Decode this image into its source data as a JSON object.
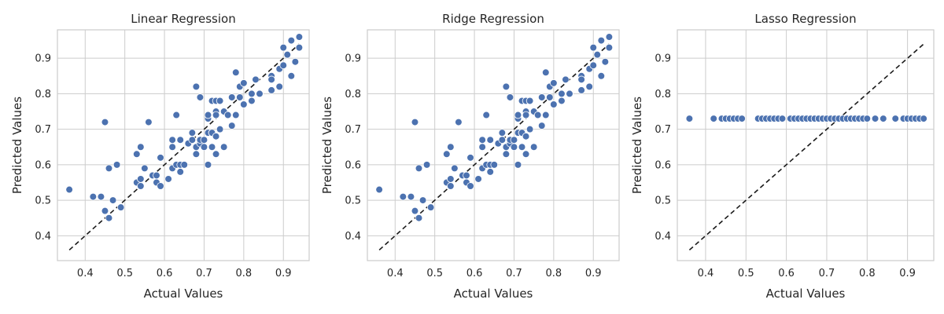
{
  "chart_data": [
    {
      "type": "scatter",
      "title": "Linear Regression",
      "xlabel": "Actual Values",
      "ylabel": "Predicted Values",
      "xlim": [
        0.33,
        0.965
      ],
      "ylim": [
        0.33,
        0.98
      ],
      "xticks": [
        0.4,
        0.5,
        0.6,
        0.7,
        0.8,
        0.9
      ],
      "yticks": [
        0.4,
        0.5,
        0.6,
        0.7,
        0.8,
        0.9
      ],
      "grid": true,
      "reference_line": {
        "style": "dashed",
        "color": "#1a1a1a",
        "from": [
          0.36,
          0.36
        ],
        "to": [
          0.94,
          0.94
        ]
      },
      "color": "#4c72b0",
      "points": [
        [
          0.36,
          0.53
        ],
        [
          0.42,
          0.51
        ],
        [
          0.44,
          0.51
        ],
        [
          0.45,
          0.72
        ],
        [
          0.45,
          0.47
        ],
        [
          0.46,
          0.59
        ],
        [
          0.46,
          0.45
        ],
        [
          0.47,
          0.5
        ],
        [
          0.48,
          0.6
        ],
        [
          0.49,
          0.48
        ],
        [
          0.53,
          0.55
        ],
        [
          0.53,
          0.63
        ],
        [
          0.54,
          0.65
        ],
        [
          0.54,
          0.54
        ],
        [
          0.54,
          0.56
        ],
        [
          0.55,
          0.59
        ],
        [
          0.56,
          0.72
        ],
        [
          0.57,
          0.57
        ],
        [
          0.58,
          0.57
        ],
        [
          0.58,
          0.55
        ],
        [
          0.59,
          0.54
        ],
        [
          0.59,
          0.62
        ],
        [
          0.61,
          0.56
        ],
        [
          0.62,
          0.65
        ],
        [
          0.62,
          0.67
        ],
        [
          0.62,
          0.59
        ],
        [
          0.63,
          0.6
        ],
        [
          0.63,
          0.74
        ],
        [
          0.64,
          0.67
        ],
        [
          0.64,
          0.58
        ],
        [
          0.64,
          0.6
        ],
        [
          0.65,
          0.6
        ],
        [
          0.66,
          0.66
        ],
        [
          0.67,
          0.69
        ],
        [
          0.67,
          0.67
        ],
        [
          0.68,
          0.65
        ],
        [
          0.68,
          0.63
        ],
        [
          0.68,
          0.82
        ],
        [
          0.69,
          0.79
        ],
        [
          0.69,
          0.66
        ],
        [
          0.69,
          0.67
        ],
        [
          0.7,
          0.65
        ],
        [
          0.7,
          0.67
        ],
        [
          0.71,
          0.73
        ],
        [
          0.71,
          0.74
        ],
        [
          0.71,
          0.69
        ],
        [
          0.71,
          0.6
        ],
        [
          0.72,
          0.78
        ],
        [
          0.72,
          0.69
        ],
        [
          0.72,
          0.65
        ],
        [
          0.72,
          0.69
        ],
        [
          0.73,
          0.78
        ],
        [
          0.73,
          0.75
        ],
        [
          0.73,
          0.74
        ],
        [
          0.73,
          0.68
        ],
        [
          0.73,
          0.63
        ],
        [
          0.74,
          0.78
        ],
        [
          0.74,
          0.7
        ],
        [
          0.75,
          0.75
        ],
        [
          0.75,
          0.65
        ],
        [
          0.76,
          0.74
        ],
        [
          0.77,
          0.79
        ],
        [
          0.77,
          0.71
        ],
        [
          0.78,
          0.86
        ],
        [
          0.78,
          0.74
        ],
        [
          0.79,
          0.82
        ],
        [
          0.79,
          0.79
        ],
        [
          0.8,
          0.83
        ],
        [
          0.8,
          0.77
        ],
        [
          0.82,
          0.8
        ],
        [
          0.82,
          0.78
        ],
        [
          0.83,
          0.84
        ],
        [
          0.84,
          0.8
        ],
        [
          0.87,
          0.85
        ],
        [
          0.87,
          0.84
        ],
        [
          0.87,
          0.81
        ],
        [
          0.89,
          0.87
        ],
        [
          0.89,
          0.82
        ],
        [
          0.9,
          0.88
        ],
        [
          0.9,
          0.93
        ],
        [
          0.91,
          0.91
        ],
        [
          0.92,
          0.85
        ],
        [
          0.92,
          0.95
        ],
        [
          0.93,
          0.89
        ],
        [
          0.94,
          0.96
        ],
        [
          0.94,
          0.93
        ]
      ]
    },
    {
      "type": "scatter",
      "title": "Ridge Regression",
      "xlabel": "Actual Values",
      "ylabel": "Predicted Values",
      "xlim": [
        0.33,
        0.965
      ],
      "ylim": [
        0.33,
        0.98
      ],
      "xticks": [
        0.4,
        0.5,
        0.6,
        0.7,
        0.8,
        0.9
      ],
      "yticks": [
        0.4,
        0.5,
        0.6,
        0.7,
        0.8,
        0.9
      ],
      "grid": true,
      "reference_line": {
        "style": "dashed",
        "color": "#1a1a1a",
        "from": [
          0.36,
          0.36
        ],
        "to": [
          0.94,
          0.94
        ]
      },
      "color": "#4c72b0",
      "points": [
        [
          0.36,
          0.53
        ],
        [
          0.42,
          0.51
        ],
        [
          0.44,
          0.51
        ],
        [
          0.45,
          0.72
        ],
        [
          0.45,
          0.47
        ],
        [
          0.46,
          0.59
        ],
        [
          0.46,
          0.45
        ],
        [
          0.47,
          0.5
        ],
        [
          0.48,
          0.6
        ],
        [
          0.49,
          0.48
        ],
        [
          0.53,
          0.55
        ],
        [
          0.53,
          0.63
        ],
        [
          0.54,
          0.65
        ],
        [
          0.54,
          0.54
        ],
        [
          0.54,
          0.56
        ],
        [
          0.55,
          0.59
        ],
        [
          0.56,
          0.72
        ],
        [
          0.57,
          0.57
        ],
        [
          0.58,
          0.57
        ],
        [
          0.58,
          0.55
        ],
        [
          0.59,
          0.54
        ],
        [
          0.59,
          0.62
        ],
        [
          0.61,
          0.56
        ],
        [
          0.62,
          0.65
        ],
        [
          0.62,
          0.67
        ],
        [
          0.62,
          0.59
        ],
        [
          0.63,
          0.6
        ],
        [
          0.63,
          0.74
        ],
        [
          0.64,
          0.67
        ],
        [
          0.64,
          0.58
        ],
        [
          0.64,
          0.6
        ],
        [
          0.65,
          0.6
        ],
        [
          0.66,
          0.66
        ],
        [
          0.67,
          0.69
        ],
        [
          0.67,
          0.67
        ],
        [
          0.68,
          0.65
        ],
        [
          0.68,
          0.63
        ],
        [
          0.68,
          0.82
        ],
        [
          0.69,
          0.79
        ],
        [
          0.69,
          0.66
        ],
        [
          0.69,
          0.67
        ],
        [
          0.7,
          0.65
        ],
        [
          0.7,
          0.67
        ],
        [
          0.71,
          0.73
        ],
        [
          0.71,
          0.74
        ],
        [
          0.71,
          0.69
        ],
        [
          0.71,
          0.6
        ],
        [
          0.72,
          0.78
        ],
        [
          0.72,
          0.69
        ],
        [
          0.72,
          0.65
        ],
        [
          0.72,
          0.69
        ],
        [
          0.73,
          0.78
        ],
        [
          0.73,
          0.75
        ],
        [
          0.73,
          0.74
        ],
        [
          0.73,
          0.68
        ],
        [
          0.73,
          0.63
        ],
        [
          0.74,
          0.78
        ],
        [
          0.74,
          0.7
        ],
        [
          0.75,
          0.75
        ],
        [
          0.75,
          0.65
        ],
        [
          0.76,
          0.74
        ],
        [
          0.77,
          0.79
        ],
        [
          0.77,
          0.71
        ],
        [
          0.78,
          0.86
        ],
        [
          0.78,
          0.74
        ],
        [
          0.79,
          0.82
        ],
        [
          0.79,
          0.79
        ],
        [
          0.8,
          0.83
        ],
        [
          0.8,
          0.77
        ],
        [
          0.82,
          0.8
        ],
        [
          0.82,
          0.78
        ],
        [
          0.83,
          0.84
        ],
        [
          0.84,
          0.8
        ],
        [
          0.87,
          0.85
        ],
        [
          0.87,
          0.84
        ],
        [
          0.87,
          0.81
        ],
        [
          0.89,
          0.87
        ],
        [
          0.89,
          0.82
        ],
        [
          0.9,
          0.88
        ],
        [
          0.9,
          0.93
        ],
        [
          0.91,
          0.91
        ],
        [
          0.92,
          0.85
        ],
        [
          0.92,
          0.95
        ],
        [
          0.93,
          0.89
        ],
        [
          0.94,
          0.96
        ],
        [
          0.94,
          0.93
        ]
      ]
    },
    {
      "type": "scatter",
      "title": "Lasso Regression",
      "xlabel": "Actual Values",
      "ylabel": "Predicted Values",
      "xlim": [
        0.33,
        0.965
      ],
      "ylim": [
        0.33,
        0.98
      ],
      "xticks": [
        0.4,
        0.5,
        0.6,
        0.7,
        0.8,
        0.9
      ],
      "yticks": [
        0.4,
        0.5,
        0.6,
        0.7,
        0.8,
        0.9
      ],
      "grid": true,
      "reference_line": {
        "style": "dashed",
        "color": "#1a1a1a",
        "from": [
          0.36,
          0.36
        ],
        "to": [
          0.94,
          0.94
        ]
      },
      "color": "#4c72b0",
      "points": [
        [
          0.36,
          0.73
        ],
        [
          0.42,
          0.73
        ],
        [
          0.44,
          0.73
        ],
        [
          0.45,
          0.73
        ],
        [
          0.46,
          0.73
        ],
        [
          0.47,
          0.73
        ],
        [
          0.48,
          0.73
        ],
        [
          0.49,
          0.73
        ],
        [
          0.53,
          0.73
        ],
        [
          0.54,
          0.73
        ],
        [
          0.55,
          0.73
        ],
        [
          0.56,
          0.73
        ],
        [
          0.57,
          0.73
        ],
        [
          0.58,
          0.73
        ],
        [
          0.59,
          0.73
        ],
        [
          0.61,
          0.73
        ],
        [
          0.62,
          0.73
        ],
        [
          0.63,
          0.73
        ],
        [
          0.64,
          0.73
        ],
        [
          0.65,
          0.73
        ],
        [
          0.66,
          0.73
        ],
        [
          0.67,
          0.73
        ],
        [
          0.68,
          0.73
        ],
        [
          0.69,
          0.73
        ],
        [
          0.7,
          0.73
        ],
        [
          0.71,
          0.73
        ],
        [
          0.72,
          0.73
        ],
        [
          0.73,
          0.73
        ],
        [
          0.74,
          0.73
        ],
        [
          0.75,
          0.73
        ],
        [
          0.76,
          0.73
        ],
        [
          0.77,
          0.73
        ],
        [
          0.78,
          0.73
        ],
        [
          0.79,
          0.73
        ],
        [
          0.8,
          0.73
        ],
        [
          0.82,
          0.73
        ],
        [
          0.84,
          0.73
        ],
        [
          0.87,
          0.73
        ],
        [
          0.89,
          0.73
        ],
        [
          0.9,
          0.73
        ],
        [
          0.91,
          0.73
        ],
        [
          0.92,
          0.73
        ],
        [
          0.93,
          0.73
        ],
        [
          0.94,
          0.73
        ]
      ]
    }
  ]
}
